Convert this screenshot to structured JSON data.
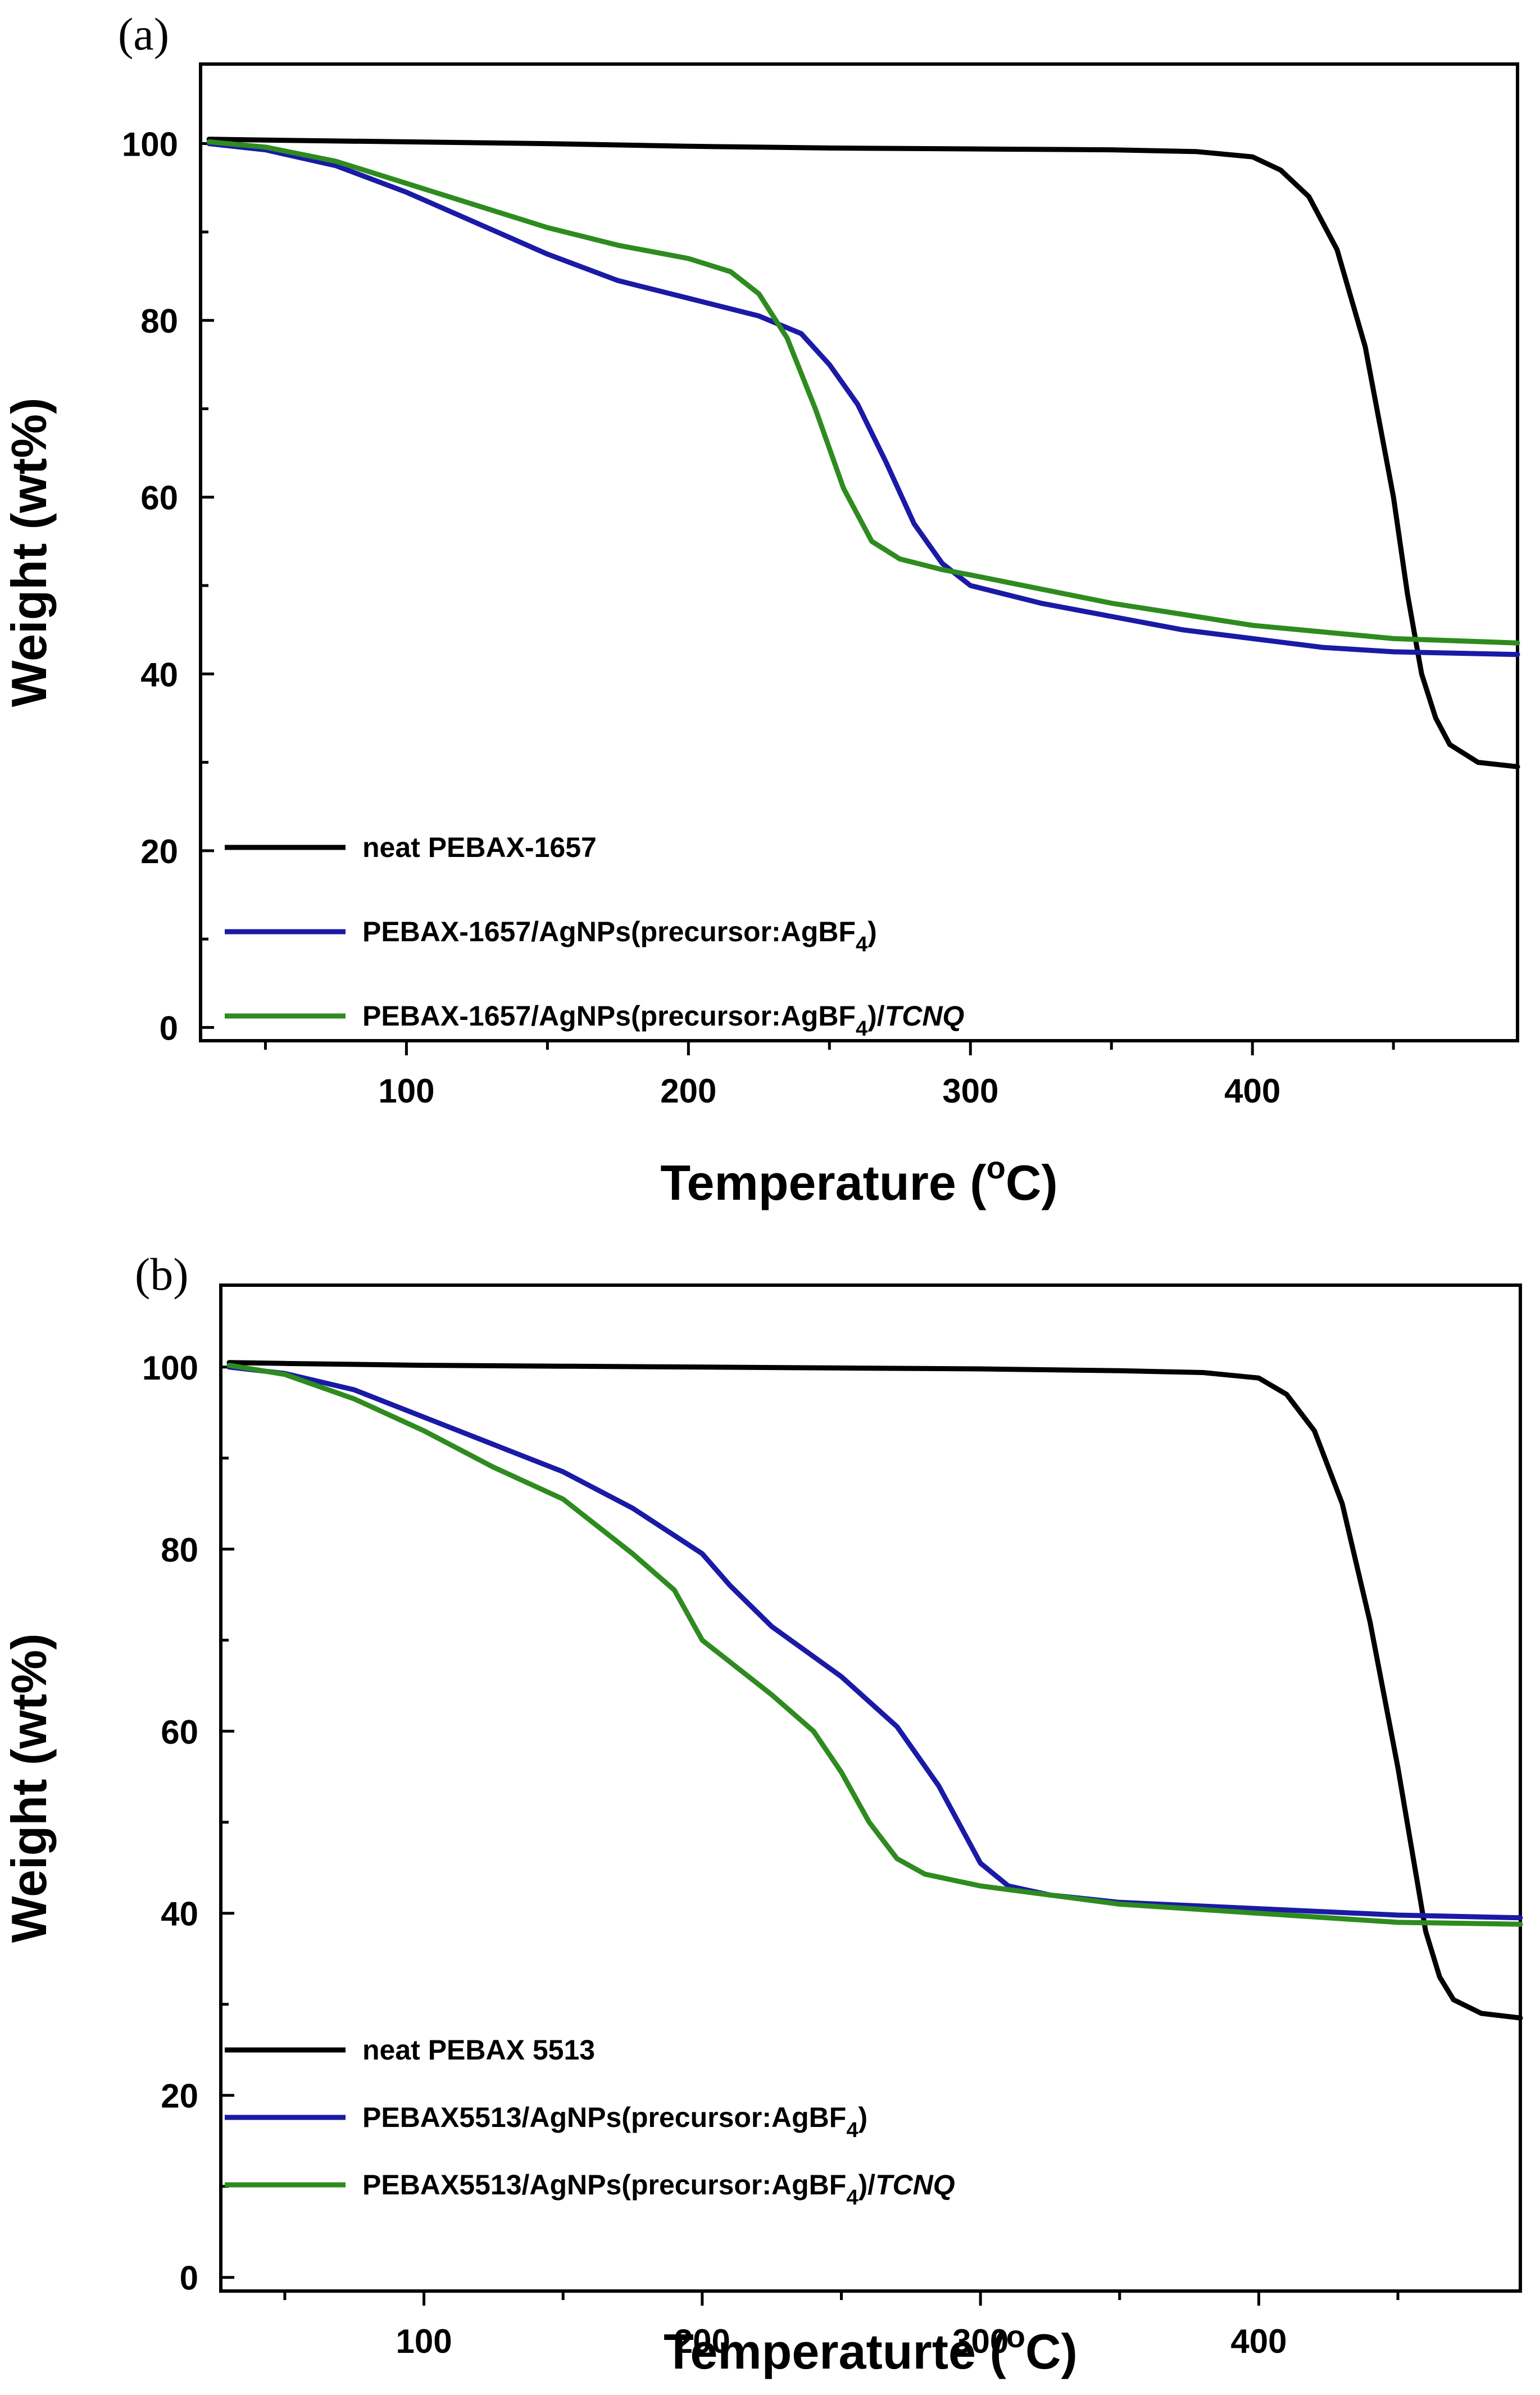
{
  "chart_data": [
    {
      "type": "line",
      "panel_label": "(a)",
      "xlabel": "Temperature (",
      "xlabel_sup": "o",
      "xlabel_end": "C)",
      "ylabel": "Weight (wt%)",
      "xlim": [
        27,
        494
      ],
      "ylim": [
        -1.5,
        109
      ],
      "x_ticks": [
        100,
        200,
        300,
        400
      ],
      "y_ticks": [
        0,
        20,
        40,
        60,
        80,
        100
      ],
      "grid": false,
      "legend_position": "bottom-left",
      "series": [
        {
          "name": "neat  PEBAX-1657",
          "legend_parts": [
            {
              "text": "neat  PEBAX-1657",
              "style": "normal"
            }
          ],
          "color": "#000000",
          "x": [
            30,
            50,
            100,
            150,
            200,
            250,
            300,
            350,
            380,
            400,
            410,
            420,
            430,
            440,
            450,
            455,
            460,
            465,
            470,
            480,
            494
          ],
          "y": [
            100.5,
            100.4,
            100.2,
            100,
            99.7,
            99.5,
            99.4,
            99.3,
            99.1,
            98.5,
            97,
            94,
            88,
            77,
            60,
            49,
            40,
            35,
            32,
            30,
            29.5
          ]
        },
        {
          "name": "PEBAX-1657/AgNPs(precursor:AgBF4)",
          "legend_parts": [
            {
              "text": "PEBAX-1657/AgNPs(precursor:AgBF",
              "style": "normal"
            },
            {
              "text": "4",
              "style": "sub"
            },
            {
              "text": ")",
              "style": "normal"
            }
          ],
          "color": "#1a1aa6",
          "x": [
            30,
            50,
            75,
            100,
            125,
            150,
            175,
            200,
            225,
            240,
            250,
            260,
            270,
            280,
            290,
            300,
            325,
            350,
            375,
            400,
            425,
            450,
            494
          ],
          "y": [
            100,
            99.3,
            97.5,
            94.5,
            91,
            87.5,
            84.5,
            82.5,
            80.5,
            78.5,
            75,
            70.5,
            64,
            57,
            52.5,
            50,
            48,
            46.5,
            45,
            44,
            43,
            42.5,
            42.2
          ]
        },
        {
          "name": "PEBAX-1657/AgNPs(precursor:AgBF4)/TCNQ",
          "legend_parts": [
            {
              "text": "PEBAX-1657/AgNPs(precursor:AgBF",
              "style": "normal"
            },
            {
              "text": "4",
              "style": "sub"
            },
            {
              "text": ")/",
              "style": "normal"
            },
            {
              "text": "TCNQ",
              "style": "italic"
            }
          ],
          "color": "#2e8b1f",
          "x": [
            30,
            50,
            75,
            100,
            125,
            150,
            175,
            200,
            215,
            225,
            235,
            245,
            255,
            265,
            275,
            290,
            300,
            350,
            400,
            450,
            494
          ],
          "y": [
            100.2,
            99.6,
            98,
            95.5,
            93,
            90.5,
            88.5,
            87,
            85.5,
            83,
            78,
            70,
            61,
            55,
            53,
            51.8,
            51.2,
            48,
            45.5,
            44,
            43.5
          ]
        }
      ]
    },
    {
      "type": "line",
      "panel_label": "(b)",
      "xlabel": "Temperaturte (",
      "xlabel_sup": "o",
      "xlabel_end": "C)",
      "ylabel": "Weight (wt%)",
      "xlim": [
        27,
        494
      ],
      "ylim": [
        -1.5,
        109
      ],
      "x_ticks": [
        100,
        200,
        300,
        400
      ],
      "y_ticks": [
        0,
        20,
        40,
        60,
        80,
        100
      ],
      "grid": false,
      "legend_position": "bottom-left",
      "series": [
        {
          "name": "neat  PEBAX 5513",
          "legend_parts": [
            {
              "text": "neat  PEBAX 5513",
              "style": "normal"
            }
          ],
          "color": "#000000",
          "x": [
            30,
            50,
            100,
            150,
            200,
            250,
            300,
            350,
            380,
            400,
            410,
            420,
            430,
            440,
            450,
            455,
            460,
            465,
            470,
            480,
            494
          ],
          "y": [
            100.5,
            100.4,
            100.2,
            100.1,
            100,
            99.9,
            99.8,
            99.6,
            99.4,
            98.8,
            97,
            93,
            85,
            72,
            56,
            47,
            38,
            33,
            30.5,
            29,
            28.5
          ]
        },
        {
          "name": "PEBAX5513/AgNPs(precursor:AgBF4)",
          "legend_parts": [
            {
              "text": "PEBAX5513/AgNPs(precursor:AgBF",
              "style": "normal"
            },
            {
              "text": "4",
              "style": "sub"
            },
            {
              "text": ")",
              "style": "normal"
            }
          ],
          "color": "#1a1aa6",
          "x": [
            30,
            50,
            75,
            100,
            125,
            150,
            175,
            200,
            210,
            225,
            250,
            270,
            285,
            300,
            310,
            325,
            350,
            400,
            450,
            494
          ],
          "y": [
            100,
            99.3,
            97.5,
            94.5,
            91.5,
            88.5,
            84.5,
            79.5,
            76,
            71.5,
            66,
            60.5,
            54,
            45.5,
            43,
            42,
            41.2,
            40.5,
            39.8,
            39.5
          ]
        },
        {
          "name": "PEBAX5513/AgNPs(precursor:AgBF4)/TCNQ",
          "legend_parts": [
            {
              "text": "PEBAX5513/AgNPs(precursor:AgBF",
              "style": "normal"
            },
            {
              "text": "4",
              "style": "sub"
            },
            {
              "text": ")/",
              "style": "normal"
            },
            {
              "text": "TCNQ",
              "style": "italic"
            }
          ],
          "color": "#2e8b1f",
          "x": [
            30,
            50,
            75,
            100,
            125,
            150,
            175,
            190,
            200,
            225,
            240,
            250,
            260,
            270,
            280,
            300,
            325,
            350,
            400,
            450,
            494
          ],
          "y": [
            100.2,
            99.2,
            96.5,
            93,
            89,
            85.5,
            79.5,
            75.5,
            70,
            64,
            60,
            55.5,
            50,
            46,
            44.3,
            43,
            42,
            41,
            40,
            39,
            38.8
          ]
        }
      ]
    }
  ]
}
